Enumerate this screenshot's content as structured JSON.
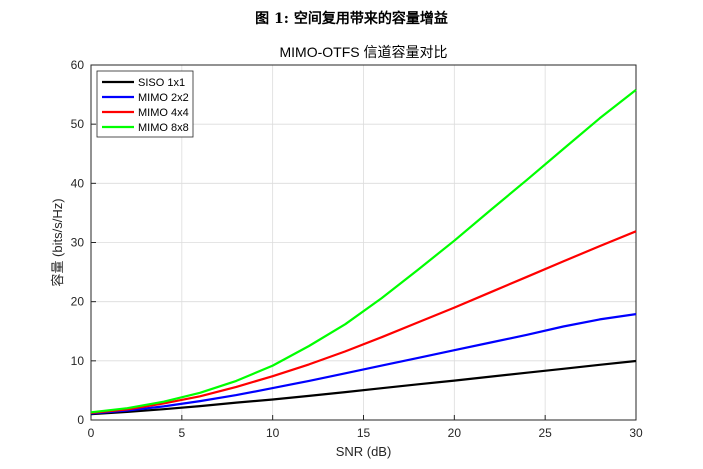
{
  "figure": {
    "caption": "图 1: 空间复用带来的容量增益"
  },
  "chart_data": {
    "type": "line",
    "title": "MIMO-OTFS 信道容量对比",
    "xlabel": "SNR (dB)",
    "ylabel": "容量 (bits/s/Hz)",
    "xlim": [
      0,
      30
    ],
    "ylim": [
      0,
      60
    ],
    "xticks": [
      0,
      5,
      10,
      15,
      20,
      25,
      30
    ],
    "yticks": [
      0,
      10,
      20,
      30,
      40,
      50,
      60
    ],
    "grid": true,
    "legend_position": "top-left",
    "x": [
      0,
      2,
      4,
      6,
      8,
      10,
      12,
      14,
      16,
      18,
      20,
      22,
      24,
      26,
      28,
      30
    ],
    "series": [
      {
        "name": "SISO 1x1",
        "color": "#000000",
        "values": [
          1.0,
          1.37,
          1.82,
          2.35,
          2.94,
          3.46,
          4.08,
          4.72,
          5.37,
          6.03,
          6.66,
          7.33,
          8.0,
          8.66,
          9.33,
          9.97
        ]
      },
      {
        "name": "MIMO 2x2",
        "color": "#0000ff",
        "values": [
          1.1,
          1.6,
          2.3,
          3.2,
          4.2,
          5.4,
          6.6,
          7.9,
          9.2,
          10.5,
          11.8,
          13.1,
          14.4,
          15.8,
          17.0,
          17.9
        ]
      },
      {
        "name": "MIMO 4x4",
        "color": "#ff0000",
        "values": [
          1.2,
          1.8,
          2.8,
          4.0,
          5.6,
          7.4,
          9.4,
          11.6,
          14.0,
          16.5,
          19.0,
          21.6,
          24.2,
          26.8,
          29.4,
          31.9
        ]
      },
      {
        "name": "MIMO 8x8",
        "color": "#00ff00",
        "values": [
          1.3,
          2.0,
          3.1,
          4.6,
          6.6,
          9.2,
          12.5,
          16.2,
          20.6,
          25.4,
          30.3,
          35.5,
          40.6,
          45.8,
          51.0,
          55.8
        ]
      }
    ]
  }
}
